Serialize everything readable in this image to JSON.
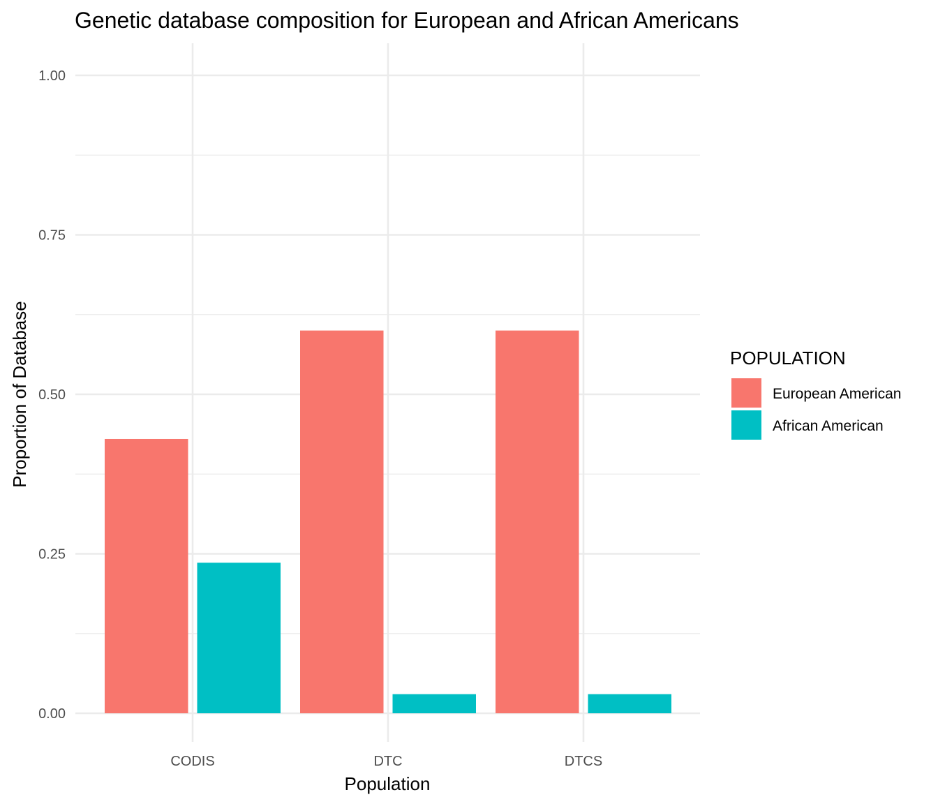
{
  "chart_data": {
    "type": "bar",
    "title": "Genetic database composition for European and African Americans",
    "xlabel": "Population",
    "ylabel": "Proportion of Database",
    "categories": [
      "CODIS",
      "DTC",
      "DTCS"
    ],
    "series": [
      {
        "name": "European American",
        "color": "#F8766D",
        "values": [
          0.43,
          0.6,
          0.6
        ]
      },
      {
        "name": "African American",
        "color": "#00BFC4",
        "values": [
          0.236,
          0.03,
          0.03
        ]
      }
    ],
    "ylim": [
      0,
      1
    ],
    "yticks": [
      0,
      0.25,
      0.5,
      0.75,
      1
    ],
    "ytick_labels": [
      "0.00",
      "0.25",
      "0.50",
      "0.75",
      "1.00"
    ],
    "grid": true,
    "legend": {
      "title": "POPULATION",
      "position": "right"
    }
  }
}
